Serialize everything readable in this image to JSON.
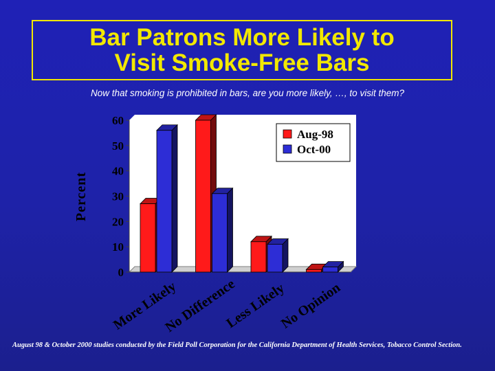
{
  "slide": {
    "title_line1": "Bar Patrons More Likely to",
    "title_line2": "Visit Smoke-Free Bars",
    "subtitle": "Now that smoking is prohibited in bars, are you more likely, …, to visit them?",
    "source_note": "August 98 & October 2000 studies conducted by the Field Poll Corporation for the California Department of Health Services, Tobacco Control Section."
  },
  "colors": {
    "background": "#1e22a8",
    "title": "#f2e800",
    "series_aug98": "#ff1a1a",
    "series_oct00": "#2d2dd6",
    "axis_text": "#000000"
  },
  "chart_data": {
    "type": "bar",
    "style": "3d-clustered",
    "categories": [
      "More Likely",
      "No Difference",
      "Less Likely",
      "No Opinion"
    ],
    "series": [
      {
        "name": "Aug-98",
        "values": [
          27,
          60,
          12,
          1
        ]
      },
      {
        "name": "Oct-00",
        "values": [
          56,
          31,
          11,
          2
        ]
      }
    ],
    "ylabel": "Percent",
    "xlabel": "",
    "ylim": [
      0,
      60
    ],
    "yticks": [
      0,
      10,
      20,
      30,
      40,
      50,
      60
    ],
    "legend_position": "top-right",
    "grid": false
  }
}
